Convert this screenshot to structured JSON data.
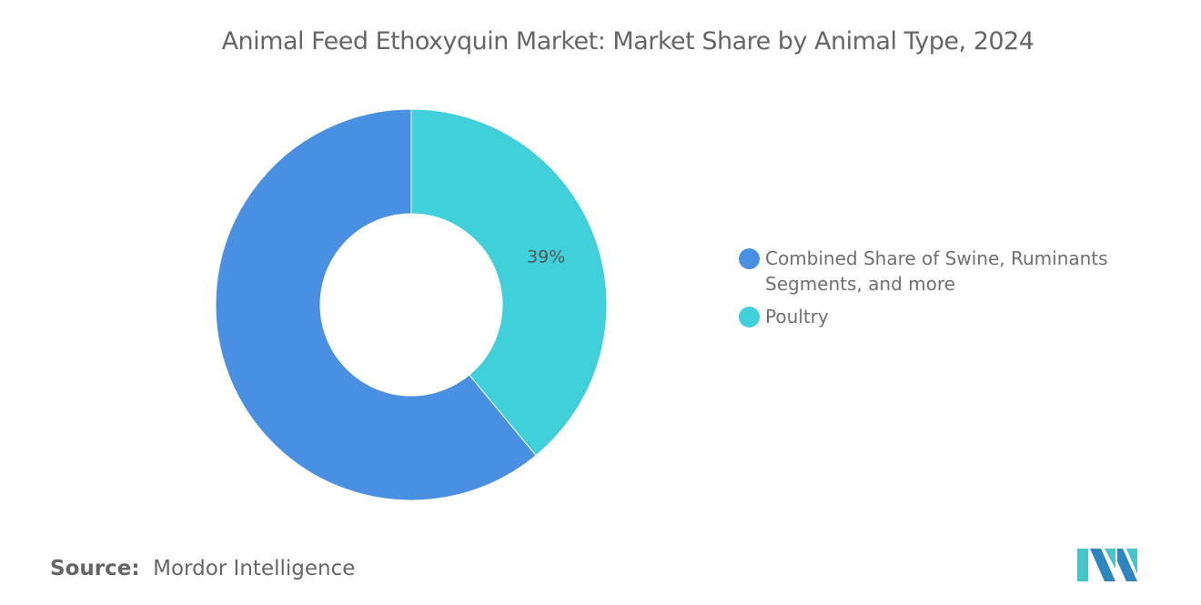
{
  "title": "Animal Feed Ethoxyquin Market: Market Share by Animal Type, 2024",
  "chart_data": {
    "type": "pie",
    "variant": "donut",
    "title": "Animal Feed Ethoxyquin Market: Market Share by Animal Type, 2024",
    "categories": [
      "Combined Share of Swine, Ruminants Segments, and more",
      "Poultry"
    ],
    "values": [
      61,
      39
    ],
    "data_labels": [
      "",
      "39%"
    ],
    "colors": [
      "#4A90E2",
      "#40D0DA"
    ],
    "legend_position": "right"
  },
  "source": {
    "label": "Source:",
    "value": "Mordor Intelligence"
  },
  "logo": {
    "name": "mordor-intelligence-logo",
    "colors": [
      "#2E86C1",
      "#45C4C9"
    ]
  }
}
